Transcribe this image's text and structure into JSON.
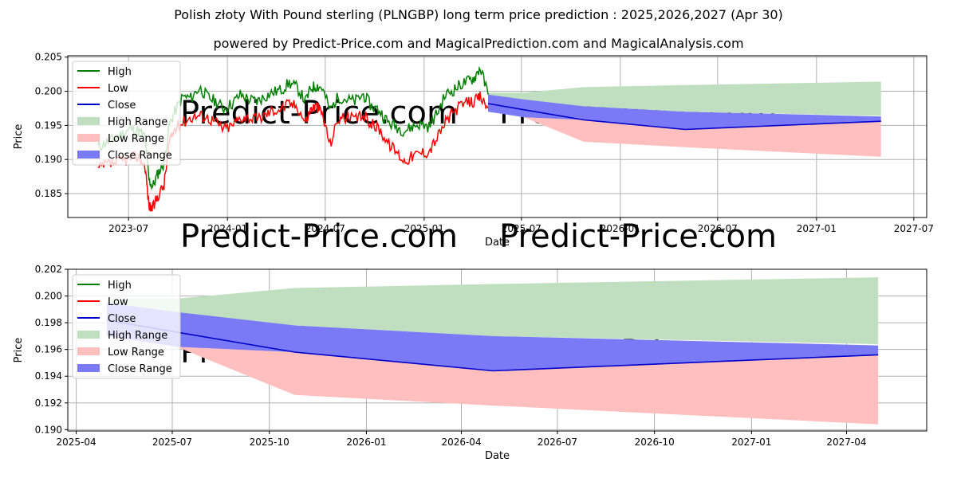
{
  "title": "Polish złoty With Pound sterling (PLNGBP) long term price prediction : 2025,2026,2027 (Apr 30)",
  "subtitle": "powered by Predict-Price.com and MagicalPrediction.com and MagicalAnalysis.com",
  "watermark": "Predict-Price.com",
  "colors": {
    "high": "#008000",
    "low": "#ff0000",
    "close": "#0000cc",
    "high_range": "#c0dfc0",
    "low_range": "#ffbfbf",
    "close_range": "#7a7af7"
  },
  "chart_data": [
    {
      "type": "line",
      "xlabel": "Date",
      "ylabel": "Price",
      "x_ticks": [
        "2023-07",
        "2024-01",
        "2024-07",
        "2025-01",
        "2025-07",
        "2026-01",
        "2026-07",
        "2027-01",
        "2027-07"
      ],
      "y_ticks": [
        "0.185",
        "0.190",
        "0.195",
        "0.200",
        "0.205"
      ],
      "xlim": [
        "2023-03-10",
        "2027-07-25"
      ],
      "ylim": [
        0.1815,
        0.2052
      ],
      "grid": true,
      "legend": "upper left",
      "legend_entries": [
        "High",
        "Low",
        "Close",
        "High Range",
        "Low Range",
        "Close Range"
      ],
      "history": {
        "dates": [
          "2023-05-05",
          "2023-05-20",
          "2023-06-05",
          "2023-06-20",
          "2023-07-05",
          "2023-07-20",
          "2023-08-01",
          "2023-08-08",
          "2023-08-15",
          "2023-08-25",
          "2023-09-05",
          "2023-09-15",
          "2023-09-25",
          "2023-10-10",
          "2023-10-25",
          "2023-11-10",
          "2023-11-25",
          "2023-12-10",
          "2023-12-25",
          "2024-01-10",
          "2024-01-25",
          "2024-02-10",
          "2024-02-25",
          "2024-03-10",
          "2024-03-25",
          "2024-04-10",
          "2024-04-25",
          "2024-05-10",
          "2024-05-25",
          "2024-06-05",
          "2024-06-15",
          "2024-06-25",
          "2024-07-10",
          "2024-07-25",
          "2024-08-10",
          "2024-08-25",
          "2024-09-10",
          "2024-09-25",
          "2024-10-10",
          "2024-10-25",
          "2024-11-10",
          "2024-11-25",
          "2024-12-10",
          "2024-12-25",
          "2025-01-10",
          "2025-01-25",
          "2025-02-10",
          "2025-02-25",
          "2025-03-10",
          "2025-03-25",
          "2025-04-05",
          "2025-04-15",
          "2025-04-30"
        ],
        "high": [
          0.1918,
          0.1925,
          0.193,
          0.1938,
          0.1945,
          0.1942,
          0.1932,
          0.187,
          0.186,
          0.188,
          0.1895,
          0.195,
          0.197,
          0.1992,
          0.199,
          0.2005,
          0.1992,
          0.1985,
          0.1975,
          0.1982,
          0.1995,
          0.1988,
          0.1985,
          0.1992,
          0.1998,
          0.2002,
          0.2012,
          0.2005,
          0.1985,
          0.2005,
          0.2008,
          0.2005,
          0.1972,
          0.1992,
          0.1988,
          0.1985,
          0.1995,
          0.1978,
          0.1972,
          0.1955,
          0.1948,
          0.1942,
          0.1948,
          0.1952,
          0.1948,
          0.1968,
          0.1995,
          0.2002,
          0.201,
          0.2015,
          0.202,
          0.2035,
          0.1995
        ],
        "low": [
          0.1885,
          0.1892,
          0.1895,
          0.1898,
          0.1902,
          0.1905,
          0.189,
          0.1832,
          0.1828,
          0.1848,
          0.1862,
          0.1925,
          0.1945,
          0.1955,
          0.1962,
          0.1965,
          0.1962,
          0.1955,
          0.1945,
          0.195,
          0.1962,
          0.1962,
          0.1958,
          0.1965,
          0.1972,
          0.1975,
          0.1982,
          0.1978,
          0.1955,
          0.1975,
          0.1978,
          0.1968,
          0.1922,
          0.196,
          0.1962,
          0.1958,
          0.1965,
          0.1952,
          0.1945,
          0.1925,
          0.1912,
          0.1898,
          0.1905,
          0.191,
          0.1912,
          0.1932,
          0.1955,
          0.197,
          0.1978,
          0.1985,
          0.1985,
          0.1992,
          0.1975
        ]
      },
      "forecast": {
        "dates": [
          "2025-04-30",
          "2025-07-05",
          "2025-10-25",
          "2026-05-01",
          "2027-05-01"
        ],
        "close": [
          0.1982,
          0.1973,
          0.1958,
          0.1944,
          0.1956
        ],
        "high_range": {
          "upper": [
            0.1998,
            0.1998,
            0.2006,
            0.2009,
            0.2014
          ],
          "lower": [
            0.1982,
            0.1978,
            0.1978,
            0.197,
            0.1964
          ]
        },
        "low_range": {
          "upper": [
            0.1982,
            0.1973,
            0.1958,
            0.1944,
            0.1956
          ],
          "lower": [
            0.1975,
            0.1962,
            0.1926,
            0.1918,
            0.1904
          ]
        },
        "close_range": {
          "upper": [
            0.1995,
            0.1988,
            0.1978,
            0.197,
            0.1963
          ],
          "lower": [
            0.197,
            0.1962,
            0.1958,
            0.1944,
            0.1956
          ]
        }
      }
    },
    {
      "type": "line",
      "xlabel": "Date",
      "ylabel": "Price",
      "x_ticks": [
        "2025-04",
        "2025-07",
        "2025-10",
        "2026-01",
        "2026-04",
        "2026-07",
        "2026-10",
        "2027-01",
        "2027-04"
      ],
      "y_ticks": [
        "0.190",
        "0.192",
        "0.194",
        "0.196",
        "0.198",
        "0.200",
        "0.202"
      ],
      "xlim": [
        "2025-03-24",
        "2027-06-16"
      ],
      "ylim": [
        0.1899,
        0.202
      ],
      "grid": true,
      "legend": "upper left",
      "legend_entries": [
        "High",
        "Low",
        "Close",
        "High Range",
        "Low Range",
        "Close Range"
      ]
    }
  ]
}
